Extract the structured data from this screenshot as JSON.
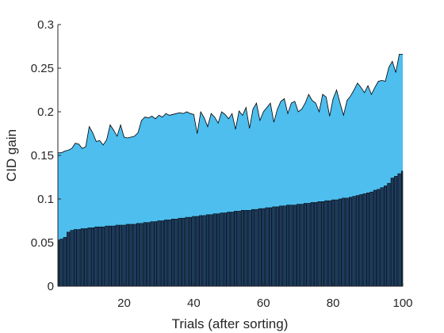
{
  "chart_data": {
    "type": "area",
    "title": "",
    "xlabel": "Trials (after sorting)",
    "ylabel": "CID gain",
    "xlim": [
      1,
      100
    ],
    "ylim": [
      0,
      0.3
    ],
    "xticks": [
      20,
      40,
      60,
      80,
      100
    ],
    "yticks": [
      0,
      0.05,
      0.1,
      0.15,
      0.2,
      0.25,
      0.3
    ],
    "xtick_labels": [
      "20",
      "40",
      "60",
      "80",
      "100"
    ],
    "ytick_labels": [
      "0",
      "0.05",
      "0.1",
      "0.15",
      "0.2",
      "0.25",
      "0.3"
    ],
    "grid": false,
    "colors": {
      "area": "#4DBEEE",
      "bars": "#1F3A5F",
      "bar_edge": "#000000",
      "line": "#000000"
    },
    "series": [
      {
        "type": "bar",
        "values": [
          0.053,
          0.054,
          0.056,
          0.062,
          0.064,
          0.065,
          0.065,
          0.066,
          0.066,
          0.067,
          0.067,
          0.068,
          0.068,
          0.068,
          0.069,
          0.069,
          0.069,
          0.07,
          0.07,
          0.07,
          0.071,
          0.071,
          0.071,
          0.072,
          0.072,
          0.073,
          0.073,
          0.074,
          0.074,
          0.075,
          0.075,
          0.076,
          0.076,
          0.077,
          0.077,
          0.078,
          0.078,
          0.079,
          0.079,
          0.08,
          0.08,
          0.081,
          0.081,
          0.082,
          0.082,
          0.083,
          0.083,
          0.084,
          0.084,
          0.085,
          0.085,
          0.086,
          0.086,
          0.087,
          0.087,
          0.087,
          0.088,
          0.088,
          0.089,
          0.089,
          0.09,
          0.09,
          0.091,
          0.091,
          0.092,
          0.092,
          0.093,
          0.093,
          0.093,
          0.094,
          0.094,
          0.095,
          0.095,
          0.096,
          0.096,
          0.097,
          0.097,
          0.098,
          0.098,
          0.099,
          0.099,
          0.1,
          0.101,
          0.101,
          0.102,
          0.103,
          0.104,
          0.105,
          0.106,
          0.107,
          0.108,
          0.11,
          0.111,
          0.113,
          0.115,
          0.118,
          0.124,
          0.126,
          0.129,
          0.132
        ]
      },
      {
        "type": "area",
        "values": [
          0.153,
          0.153,
          0.155,
          0.156,
          0.158,
          0.164,
          0.163,
          0.158,
          0.16,
          0.183,
          0.176,
          0.166,
          0.167,
          0.162,
          0.168,
          0.185,
          0.179,
          0.172,
          0.185,
          0.171,
          0.17,
          0.171,
          0.172,
          0.176,
          0.19,
          0.194,
          0.193,
          0.195,
          0.192,
          0.196,
          0.194,
          0.198,
          0.196,
          0.197,
          0.198,
          0.199,
          0.198,
          0.2,
          0.198,
          0.197,
          0.175,
          0.2,
          0.193,
          0.183,
          0.198,
          0.194,
          0.187,
          0.2,
          0.197,
          0.192,
          0.198,
          0.18,
          0.201,
          0.196,
          0.205,
          0.181,
          0.203,
          0.21,
          0.19,
          0.2,
          0.205,
          0.21,
          0.188,
          0.203,
          0.212,
          0.215,
          0.198,
          0.21,
          0.212,
          0.2,
          0.203,
          0.21,
          0.22,
          0.213,
          0.21,
          0.2,
          0.22,
          0.217,
          0.195,
          0.215,
          0.225,
          0.21,
          0.196,
          0.213,
          0.218,
          0.225,
          0.233,
          0.228,
          0.222,
          0.23,
          0.22,
          0.228,
          0.235,
          0.236,
          0.235,
          0.251,
          0.258,
          0.245,
          0.266,
          0.266
        ]
      }
    ]
  }
}
